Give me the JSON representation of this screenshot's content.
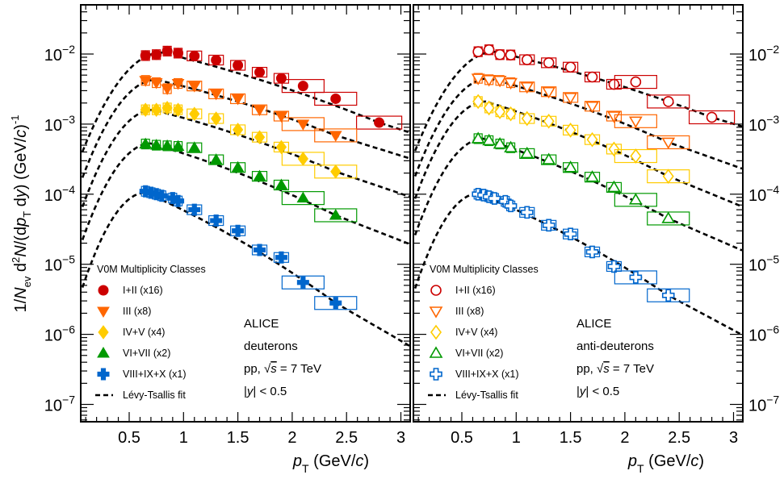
{
  "chart_data": {
    "type": "scatter",
    "scale": {
      "y": "log"
    },
    "panels": [
      {
        "filled": true,
        "xlim": [
          0.05,
          3.1
        ],
        "ylim": [
          4e-08,
          0.03
        ],
        "legend_title": "V0M Multiplicity Classes",
        "legend_fit_label": "Lévy-Tsallis fit",
        "annotations": [
          "ALICE",
          "deuterons",
          "pp, √s = 7 TeV",
          "|y| < 0.5"
        ],
        "series": [
          {
            "name": "I+II (x16)",
            "marker": "circle",
            "color": "#cc0000",
            "x": [
              0.65,
              0.75,
              0.85,
              0.95,
              1.1,
              1.3,
              1.5,
              1.7,
              1.9,
              2.1,
              2.4,
              2.8
            ],
            "y": [
              0.0095,
              0.0098,
              0.011,
              0.0103,
              0.0094,
              0.0082,
              0.0069,
              0.0055,
              0.0045,
              0.0035,
              0.0023,
              0.00105
            ],
            "fit_peak": 0.0105,
            "fit_mode_pt": 0.8
          },
          {
            "name": "III (x8)",
            "marker": "triangle-down",
            "color": "#ff6600",
            "x": [
              0.65,
              0.75,
              0.85,
              0.95,
              1.1,
              1.3,
              1.5,
              1.7,
              1.9,
              2.1,
              2.4
            ],
            "y": [
              0.0042,
              0.0039,
              0.0032,
              0.0038,
              0.0035,
              0.0027,
              0.0023,
              0.0016,
              0.0013,
              0.001,
              0.00069
            ],
            "fit_peak": 0.0043,
            "fit_mode_pt": 0.75
          },
          {
            "name": "IV+V (x4)",
            "marker": "diamond",
            "color": "#ffcc00",
            "x": [
              0.65,
              0.75,
              0.85,
              0.95,
              1.1,
              1.3,
              1.5,
              1.7,
              1.9,
              2.1,
              2.4
            ],
            "y": [
              0.0016,
              0.0016,
              0.0017,
              0.0016,
              0.0014,
              0.0012,
              0.00083,
              0.00065,
              0.00047,
              0.00032,
              0.00021
            ],
            "fit_peak": 0.0016,
            "fit_mode_pt": 0.72
          },
          {
            "name": "VI+VII (x2)",
            "marker": "triangle-up",
            "color": "#009900",
            "x": [
              0.65,
              0.75,
              0.85,
              0.95,
              1.1,
              1.3,
              1.5,
              1.7,
              1.9,
              2.1,
              2.4
            ],
            "y": [
              0.00052,
              0.0005,
              0.00049,
              0.00048,
              0.00046,
              0.00031,
              0.00024,
              0.00018,
              0.000135,
              8.8e-05,
              5e-05
            ],
            "fit_peak": 0.00053,
            "fit_mode_pt": 0.7
          },
          {
            "name": "VIII+IX+X (x1)",
            "marker": "cross",
            "color": "#0066cc",
            "x": [
              0.65,
              0.7,
              0.75,
              0.8,
              0.9,
              0.95,
              1.1,
              1.3,
              1.5,
              1.7,
              1.9,
              2.1,
              2.4
            ],
            "y": [
              0.00011,
              0.000105,
              0.0001,
              9.5e-05,
              8.8e-05,
              8e-05,
              6e-05,
              4.2e-05,
              3e-05,
              1.6e-05,
              1.25e-05,
              5.5e-06,
              2.8e-06
            ],
            "fit_peak": 0.000105,
            "fit_mode_pt": 0.65
          }
        ]
      },
      {
        "filled": false,
        "xlim": [
          0.05,
          3.1
        ],
        "ylim": [
          4e-08,
          0.03
        ],
        "legend_title": "V0M Multiplicity Classes",
        "legend_fit_label": "Lévy-Tsallis fit",
        "annotations": [
          "ALICE",
          "anti-deuterons",
          "pp, √s = 7 TeV",
          "|y| < 0.5"
        ],
        "series": [
          {
            "name": "I+II (x16)",
            "marker": "circle",
            "color": "#cc0000",
            "x": [
              0.65,
              0.75,
              0.85,
              0.95,
              1.1,
              1.3,
              1.5,
              1.7,
              1.9,
              2.1,
              2.4,
              2.8
            ],
            "y": [
              0.0108,
              0.0115,
              0.0098,
              0.0097,
              0.0083,
              0.0075,
              0.0065,
              0.0047,
              0.0037,
              0.004,
              0.0021,
              0.00125
            ],
            "fit_peak": 0.0108,
            "fit_mode_pt": 0.8
          },
          {
            "name": "III (x8)",
            "marker": "triangle-down",
            "color": "#ff6600",
            "x": [
              0.65,
              0.75,
              0.85,
              0.95,
              1.1,
              1.3,
              1.5,
              1.7,
              1.9,
              2.1,
              2.4
            ],
            "y": [
              0.0045,
              0.0043,
              0.0042,
              0.0039,
              0.0034,
              0.0029,
              0.0024,
              0.0018,
              0.0013,
              0.0011,
              0.00055
            ],
            "fit_peak": 0.0045,
            "fit_mode_pt": 0.75
          },
          {
            "name": "IV+V (x4)",
            "marker": "diamond",
            "color": "#ffcc00",
            "x": [
              0.65,
              0.75,
              0.85,
              0.95,
              1.1,
              1.3,
              1.5,
              1.7,
              1.9,
              2.1,
              2.4
            ],
            "y": [
              0.0021,
              0.0017,
              0.0015,
              0.0014,
              0.0012,
              0.0011,
              0.00082,
              0.0006,
              0.00044,
              0.00035,
              0.00018
            ],
            "fit_peak": 0.0021,
            "fit_mode_pt": 0.72
          },
          {
            "name": "VI+VII (x2)",
            "marker": "triangle-up",
            "color": "#009900",
            "x": [
              0.65,
              0.75,
              0.85,
              0.95,
              1.1,
              1.3,
              1.5,
              1.7,
              1.9,
              2.1,
              2.4
            ],
            "y": [
              0.00062,
              0.00058,
              0.00052,
              0.00046,
              0.00038,
              0.00031,
              0.00024,
              0.000175,
              0.000125,
              8.3e-05,
              4.5e-05
            ],
            "fit_peak": 0.00062,
            "fit_mode_pt": 0.7
          },
          {
            "name": "VIII+IX+X (x1)",
            "marker": "cross",
            "color": "#0066cc",
            "x": [
              0.65,
              0.7,
              0.75,
              0.8,
              0.9,
              0.95,
              1.1,
              1.3,
              1.5,
              1.7,
              1.9,
              2.1,
              2.4
            ],
            "y": [
              0.0001,
              9.7e-05,
              9.2e-05,
              8.7e-05,
              7.9e-05,
              6.8e-05,
              5.5e-05,
              3.6e-05,
              2.7e-05,
              1.5e-05,
              9.3e-06,
              6.5e-06,
              3.6e-06
            ],
            "fit_peak": 0.000102,
            "fit_mode_pt": 0.65
          }
        ]
      }
    ],
    "x_ticks": [
      0.5,
      1,
      1.5,
      2,
      2.5,
      3
    ],
    "x_tick_labels": [
      "0.5",
      "1",
      "1.5",
      "2",
      "2.5",
      "3"
    ],
    "xlabel": "p_T (GeV/c)",
    "ylabel": "1/N_ev d²N/(dp_T dy) (GeV/c)⁻¹",
    "y_ticks": [
      {
        "exp": -2
      },
      {
        "exp": -3
      },
      {
        "exp": -4
      },
      {
        "exp": -5
      },
      {
        "exp": -6
      },
      {
        "exp": -7
      }
    ],
    "y_tick_base": "10",
    "grid": false
  }
}
